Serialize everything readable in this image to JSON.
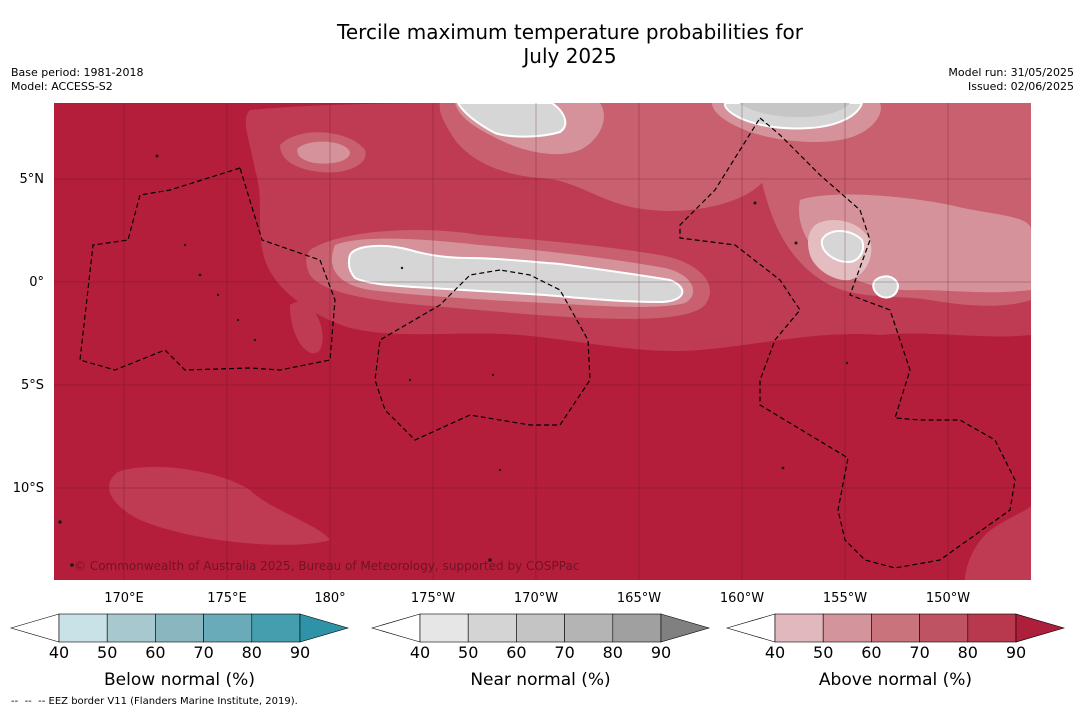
{
  "header": {
    "title": "Tercile maximum temperature probabilities for\nJuly 2025",
    "base_period": "Base period: 1981-2018",
    "model": "Model: ACCESS-S2",
    "model_run": "Model run: 31/05/2025",
    "issued": "Issued: 02/06/2025"
  },
  "map": {
    "lat_labels": [
      "5°N",
      "0°",
      "5°S",
      "10°S"
    ],
    "lon_labels": [
      "170°E",
      "175°E",
      "180°",
      "175°W",
      "170°W",
      "165°W",
      "160°W",
      "155°W",
      "150°W"
    ],
    "copyright": "© Commonwealth of Australia 2025, Bureau of Meteorology, supported by COSPPac",
    "colors": {
      "above_90": "#b41e3b",
      "above_80": "#bf3a53",
      "above_70": "#c9606f",
      "above_60": "#d6929a",
      "above_50": "#e4bdc1",
      "near_50": "#d6d6d6",
      "near_60": "#c6c6c6",
      "land": "#ffffff",
      "eez": "#000000"
    }
  },
  "colorbars": [
    {
      "title": "Below normal (%)",
      "ticks": [
        "40",
        "50",
        "60",
        "70",
        "80",
        "90"
      ],
      "colors": [
        "#ffffff",
        "#c8e2e8",
        "#a6c8ce",
        "#8ab6c0",
        "#6aabb9",
        "#459ead",
        "#2f93a8"
      ]
    },
    {
      "title": "Near normal (%)",
      "ticks": [
        "40",
        "50",
        "60",
        "70",
        "80",
        "90"
      ],
      "colors": [
        "#ffffff",
        "#e6e6e6",
        "#d4d4d4",
        "#c4c4c4",
        "#b4b4b4",
        "#a0a0a0",
        "#808080"
      ]
    },
    {
      "title": "Above normal (%)",
      "ticks": [
        "40",
        "50",
        "60",
        "70",
        "80",
        "90"
      ],
      "colors": [
        "#ffffff",
        "#e0b8bd",
        "#d4949b",
        "#c9737d",
        "#be5364",
        "#b8384e",
        "#ae1f3b"
      ]
    }
  ],
  "footnote": "--  --  -- EEZ border V11 (Flanders Marine Institute, 2019)."
}
